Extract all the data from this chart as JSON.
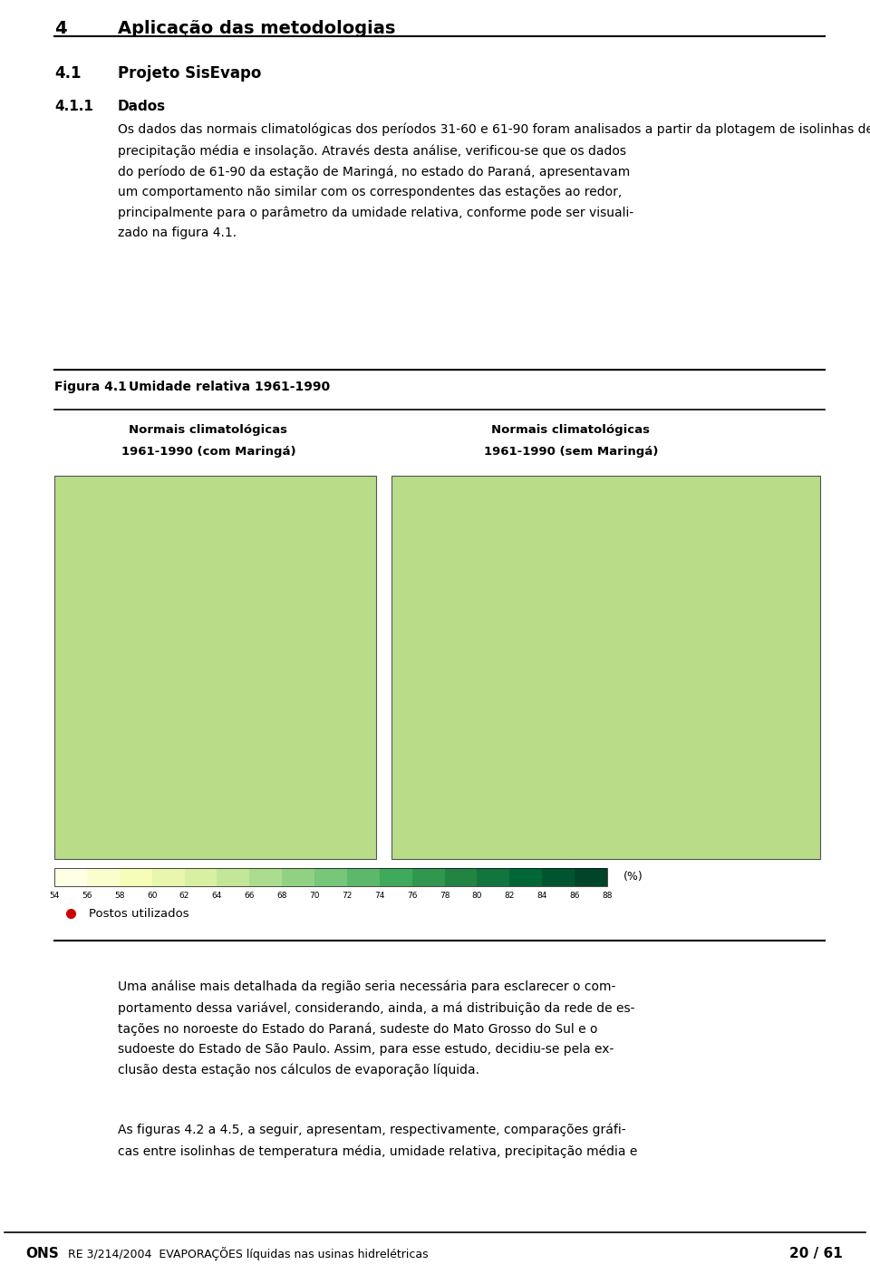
{
  "bg_color": "#ffffff",
  "page_width": 9.6,
  "page_height": 14.17,
  "header_num": "4",
  "header_title": "Aplicação das metodologias",
  "section_41": "4.1",
  "section_41_title": "Projeto SisEvapo",
  "section_411": "4.1.1",
  "section_411_title": "Dados",
  "body_text_1a": "Os dados das normais climatológicas dos períodos 31-60 e 61-90 foram analisados a partir da plotagem de isolinhas de temperatura média, umidade relativa,\nprecipitação média e insolação. Através desta análise, verificou-se que os dados\ndo período de 61-90 da estação de Maringá, no estado do Paraná, apresentavam\num comportamento não similar com os correspondentes das estações ao redor,\nprincipalmente para o parâmetro da umidade relativa, conforme pode ser visuali-\nzado na figura 4.1.",
  "figure_label": "Figura 4.1",
  "figure_title": "Umidade relativa 1961-1990",
  "col1_label_line1": "Normais climatológicas",
  "col1_label_line2": "1961-1990 (com Maringá)",
  "col2_label_line1": "Normais climatológicas",
  "col2_label_line2": "1961-1990 (sem Maringá)",
  "colorbar_label": "(%)",
  "colorbar_ticks": [
    "54",
    "56",
    "58",
    "60",
    "62",
    "64",
    "66",
    "68",
    "70",
    "72",
    "74",
    "76",
    "78",
    "80",
    "82",
    "84",
    "86",
    "88"
  ],
  "colorbar_colors": [
    "#ffffcc",
    "#f0f9b0",
    "#d9f0a3",
    "#addd8e",
    "#78c679",
    "#41ab5d",
    "#238443",
    "#006837",
    "#004529",
    "#002d18",
    "#002010",
    "#001808",
    "#001008",
    "#000800",
    "#c8e880",
    "#a0d060",
    "#78b840",
    "#509828"
  ],
  "postos_label": "Postos utilizados",
  "body_text_2": "Uma análise mais detalhada da região seria necessária para esclarecer o com-\nportamento dessa variável, considerando, ainda, a má distribuição da rede de es-\ntações no noroeste do Estado do Paraná, sudeste do Mato Grosso do Sul e o\nsudoeste do Estado de São Paulo. Assim, para esse estudo, decidiu-se pela ex-\nclusão desta estação nos cálculos de evaporação líquida.",
  "body_text_3": "As figuras 4.2 a 4.5, a seguir, apresentam, respectivamente, comparações gráfi-\ncas entre isolinhas de temperatura média, umidade relativa, precipitação média e",
  "footer_logo": "ONS",
  "footer_ref": "RE 3/214/2004  EVAPORAÇÕES líquidas nas usinas hidrelétricas",
  "footer_page": "20 / 61",
  "map_color": "#b8dc88",
  "red_dot_color": "#cc0000"
}
